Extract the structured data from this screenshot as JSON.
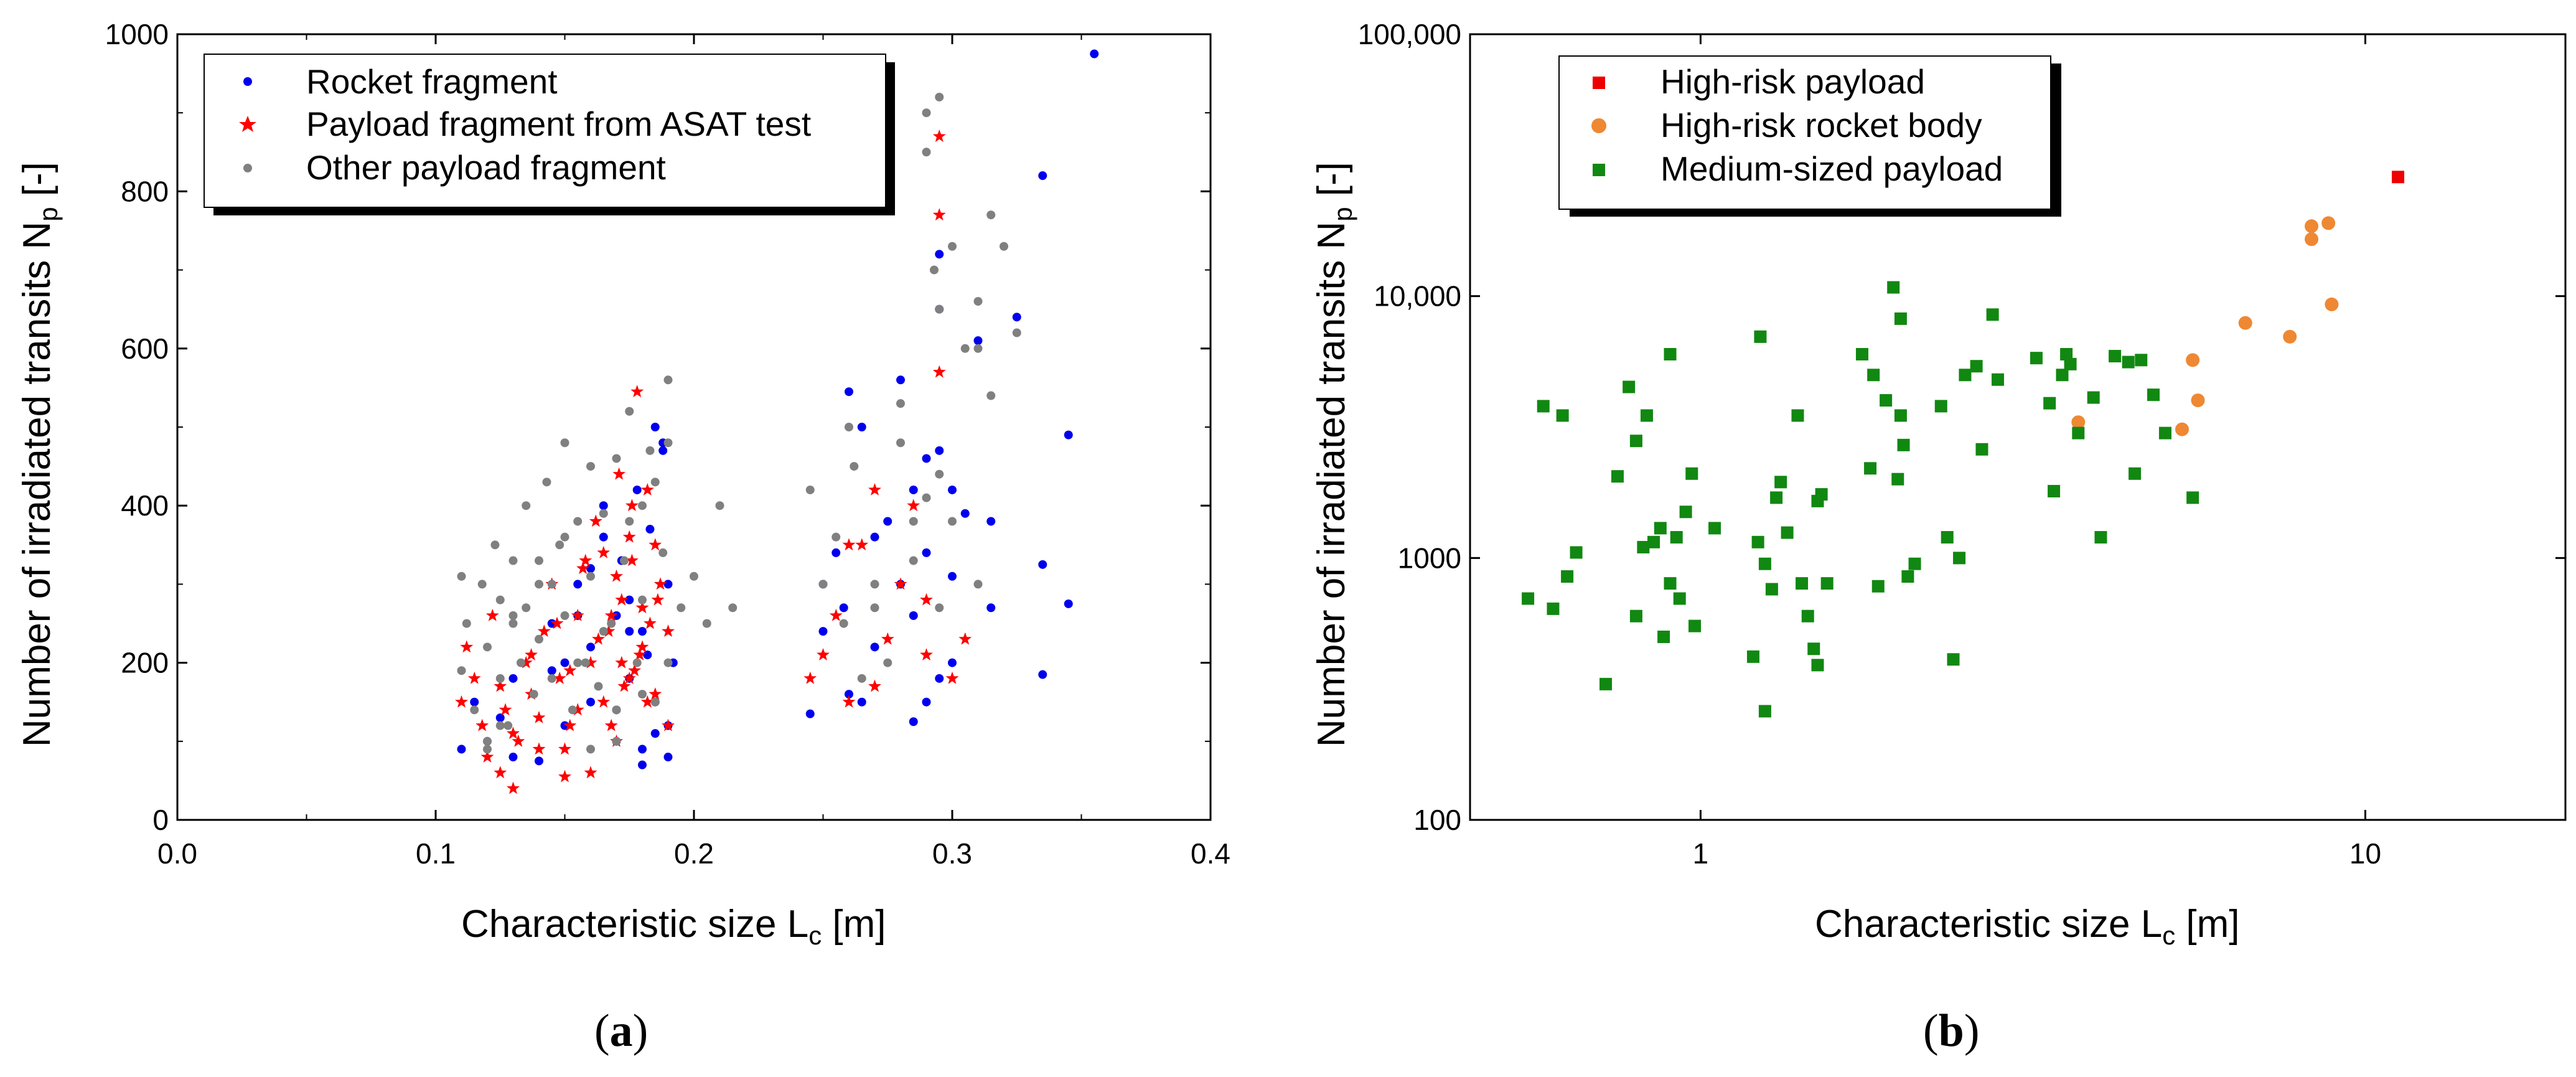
{
  "chart_data": [
    {
      "type": "scatter",
      "panel_label": "a",
      "xlabel": "Characteristic size L",
      "xlabel_sub": "c",
      "xlabel_unit": "[m]",
      "ylabel": "Number of irradiated transits N",
      "ylabel_sub": "p",
      "ylabel_unit": "[-]",
      "xlim": [
        0.0,
        0.4
      ],
      "ylim": [
        0,
        1000
      ],
      "xscale": "linear",
      "yscale": "linear",
      "xticks": [
        0.0,
        0.1,
        0.2,
        0.3,
        0.4
      ],
      "xtick_labels": [
        "0.0",
        "0.1",
        "0.2",
        "0.3",
        "0.4"
      ],
      "yticks": [
        0,
        200,
        400,
        600,
        800,
        1000
      ],
      "ytick_labels": [
        "0",
        "200",
        "400",
        "600",
        "800",
        "1000"
      ],
      "legend_position": "top-left",
      "series": [
        {
          "name": "Rocket fragment",
          "color": "#0000ee",
          "marker": "circle",
          "x": [
            0.11,
            0.115,
            0.12,
            0.125,
            0.13,
            0.13,
            0.14,
            0.145,
            0.15,
            0.15,
            0.155,
            0.16,
            0.16,
            0.165,
            0.17,
            0.17,
            0.172,
            0.175,
            0.178,
            0.18,
            0.18,
            0.183,
            0.185,
            0.185,
            0.188,
            0.19,
            0.19,
            0.192,
            0.155,
            0.165,
            0.175,
            0.18,
            0.185,
            0.16,
            0.17,
            0.188,
            0.145,
            0.175,
            0.182,
            0.19,
            0.245,
            0.25,
            0.255,
            0.258,
            0.26,
            0.265,
            0.27,
            0.275,
            0.28,
            0.285,
            0.285,
            0.29,
            0.29,
            0.295,
            0.295,
            0.295,
            0.3,
            0.305,
            0.31,
            0.315,
            0.325,
            0.335,
            0.335,
            0.345,
            0.345,
            0.355,
            0.26,
            0.27,
            0.28,
            0.29,
            0.3,
            0.25,
            0.295,
            0.315,
            0.335,
            0.3,
            0.285,
            0.265
          ],
          "y": [
            90,
            150,
            100,
            130,
            80,
            180,
            75,
            250,
            120,
            200,
            300,
            150,
            220,
            400,
            100,
            260,
            330,
            180,
            420,
            90,
            240,
            370,
            500,
            150,
            480,
            300,
            120,
            200,
            260,
            360,
            280,
            70,
            110,
            320,
            140,
            470,
            190,
            240,
            210,
            80,
            135,
            300,
            340,
            270,
            160,
            500,
            220,
            380,
            300,
            125,
            420,
            150,
            460,
            180,
            650,
            720,
            200,
            390,
            610,
            270,
            640,
            820,
            185,
            490,
            275,
            975,
            545,
            360,
            560,
            340,
            310,
            240,
            470,
            380,
            325,
            420,
            260,
            150
          ]
        },
        {
          "name": "Payload fragment from ASAT test",
          "color": "#ff0000",
          "marker": "star",
          "x": [
            0.11,
            0.112,
            0.115,
            0.118,
            0.12,
            0.122,
            0.125,
            0.127,
            0.13,
            0.132,
            0.135,
            0.137,
            0.14,
            0.142,
            0.145,
            0.148,
            0.15,
            0.152,
            0.155,
            0.158,
            0.16,
            0.162,
            0.165,
            0.167,
            0.17,
            0.172,
            0.175,
            0.177,
            0.18,
            0.182,
            0.185,
            0.187,
            0.19,
            0.19,
            0.165,
            0.168,
            0.172,
            0.178,
            0.182,
            0.176,
            0.16,
            0.15,
            0.14,
            0.13,
            0.125,
            0.17,
            0.18,
            0.175,
            0.185,
            0.155,
            0.163,
            0.173,
            0.179,
            0.186,
            0.168,
            0.157,
            0.147,
            0.137,
            0.152,
            0.171,
            0.183,
            0.176,
            0.245,
            0.25,
            0.255,
            0.26,
            0.265,
            0.27,
            0.275,
            0.28,
            0.285,
            0.29,
            0.295,
            0.295,
            0.295,
            0.3,
            0.305,
            0.26,
            0.27,
            0.29
          ],
          "y": [
            150,
            220,
            180,
            120,
            80,
            260,
            60,
            140,
            40,
            100,
            200,
            160,
            90,
            240,
            300,
            180,
            55,
            120,
            260,
            330,
            200,
            380,
            150,
            240,
            100,
            280,
            360,
            190,
            220,
            420,
            160,
            300,
            240,
            120,
            340,
            260,
            200,
            545,
            150,
            400,
            60,
            90,
            130,
            110,
            170,
            310,
            270,
            180,
            350,
            140,
            230,
            170,
            210,
            280,
            120,
            320,
            250,
            210,
            190,
            440,
            250,
            330,
            180,
            210,
            260,
            150,
            350,
            170,
            230,
            300,
            400,
            210,
            870,
            770,
            570,
            180,
            230,
            350,
            420,
            280
          ]
        },
        {
          "name": "Other payload fragment",
          "color": "#808080",
          "marker": "circle",
          "x": [
            0.11,
            0.11,
            0.112,
            0.115,
            0.118,
            0.12,
            0.12,
            0.123,
            0.125,
            0.125,
            0.128,
            0.13,
            0.13,
            0.133,
            0.135,
            0.138,
            0.14,
            0.14,
            0.143,
            0.145,
            0.148,
            0.15,
            0.15,
            0.153,
            0.155,
            0.158,
            0.16,
            0.16,
            0.163,
            0.165,
            0.168,
            0.17,
            0.17,
            0.173,
            0.175,
            0.178,
            0.18,
            0.18,
            0.183,
            0.185,
            0.188,
            0.19,
            0.19,
            0.195,
            0.2,
            0.205,
            0.21,
            0.215,
            0.175,
            0.165,
            0.185,
            0.155,
            0.145,
            0.135,
            0.125,
            0.19,
            0.18,
            0.17,
            0.16,
            0.15,
            0.14,
            0.13,
            0.12,
            0.245,
            0.25,
            0.255,
            0.258,
            0.262,
            0.265,
            0.27,
            0.275,
            0.28,
            0.285,
            0.29,
            0.29,
            0.293,
            0.295,
            0.295,
            0.295,
            0.3,
            0.305,
            0.31,
            0.315,
            0.315,
            0.32,
            0.325,
            0.26,
            0.27,
            0.28,
            0.3,
            0.31,
            0.31,
            0.295,
            0.29,
            0.285
          ],
          "y": [
            310,
            190,
            250,
            140,
            300,
            220,
            90,
            350,
            180,
            280,
            120,
            330,
            250,
            200,
            400,
            160,
            300,
            230,
            430,
            180,
            350,
            480,
            260,
            140,
            380,
            200,
            450,
            310,
            170,
            390,
            250,
            460,
            140,
            330,
            520,
            200,
            400,
            280,
            470,
            150,
            340,
            560,
            480,
            270,
            310,
            250,
            400,
            270,
            380,
            240,
            430,
            200,
            300,
            270,
            120,
            200,
            160,
            100,
            90,
            360,
            330,
            260,
            100,
            420,
            300,
            360,
            250,
            450,
            180,
            300,
            200,
            530,
            380,
            900,
            850,
            700,
            920,
            650,
            440,
            730,
            600,
            660,
            770,
            540,
            730,
            620,
            500,
            270,
            480,
            380,
            300,
            600,
            270,
            410,
            330
          ]
        }
      ]
    },
    {
      "type": "scatter",
      "panel_label": "b",
      "xlabel": "Characteristic size L",
      "xlabel_sub": "c",
      "xlabel_unit": "[m]",
      "ylabel": "Number of irradiated transits N",
      "ylabel_sub": "p",
      "ylabel_unit": "[-]",
      "xlim": [
        0.45,
        20
      ],
      "ylim": [
        100,
        100000
      ],
      "xscale": "log",
      "yscale": "log",
      "xticks": [
        1,
        10
      ],
      "xtick_labels": [
        "1",
        "10"
      ],
      "yticks": [
        100,
        1000,
        10000,
        100000
      ],
      "ytick_labels": [
        "100",
        "1000",
        "10,000",
        "100,000"
      ],
      "legend_position": "top-left",
      "series": [
        {
          "name": "High-risk payload",
          "color": "#ee0000",
          "marker": "square",
          "x": [
            11.2
          ],
          "y": [
            28500
          ]
        },
        {
          "name": "High-risk rocket body",
          "color": "#ee8833",
          "marker": "circle",
          "x": [
            3.7,
            5.3,
            5.5,
            5.6,
            6.6,
            7.7,
            8.3,
            8.3,
            8.8,
            8.9
          ],
          "y": [
            3300,
            3100,
            5700,
            4000,
            7900,
            7000,
            18500,
            16500,
            19000,
            9300
          ]
        },
        {
          "name": "Medium-sized payload",
          "color": "#118811",
          "marker": "square",
          "x": [
            0.55,
            0.58,
            0.6,
            0.62,
            0.63,
            0.65,
            0.72,
            0.75,
            0.78,
            0.8,
            0.8,
            0.82,
            0.83,
            0.85,
            0.87,
            0.88,
            0.9,
            0.9,
            0.92,
            0.93,
            0.95,
            0.97,
            0.98,
            1.05,
            1.2,
            1.22,
            1.23,
            1.25,
            1.25,
            1.28,
            1.3,
            1.32,
            1.35,
            1.4,
            1.42,
            1.45,
            1.48,
            1.5,
            1.5,
            1.52,
            1.55,
            1.75,
            1.8,
            1.82,
            1.85,
            1.9,
            1.95,
            1.98,
            2.0,
            2.0,
            2.02,
            2.05,
            2.1,
            2.3,
            2.35,
            2.4,
            2.45,
            2.5,
            2.6,
            2.65,
            2.75,
            2.8,
            3.2,
            3.35,
            3.4,
            3.5,
            3.55,
            3.6,
            3.7,
            3.9,
            4.0,
            4.2,
            4.4,
            4.5,
            4.6,
            4.8,
            5.0,
            5.5
          ],
          "y": [
            700,
            3800,
            640,
            3500,
            850,
            1050,
            330,
            2050,
            4500,
            2800,
            600,
            1100,
            3500,
            1150,
            1300,
            500,
            6000,
            800,
            1200,
            700,
            1500,
            2100,
            550,
            1300,
            420,
            1150,
            7000,
            950,
            260,
            760,
            1700,
            1950,
            1250,
            3500,
            800,
            600,
            450,
            1650,
            390,
            1750,
            800,
            6000,
            2200,
            5000,
            780,
            4000,
            10800,
            2000,
            3500,
            8200,
            2700,
            850,
            950,
            3800,
            1200,
            410,
            1000,
            5000,
            5400,
            2600,
            8500,
            4800,
            5800,
            3900,
            1800,
            5000,
            6000,
            5500,
            3000,
            4100,
            1200,
            5900,
            5600,
            2100,
            5700,
            4200,
            3000,
            1700
          ]
        }
      ]
    }
  ]
}
